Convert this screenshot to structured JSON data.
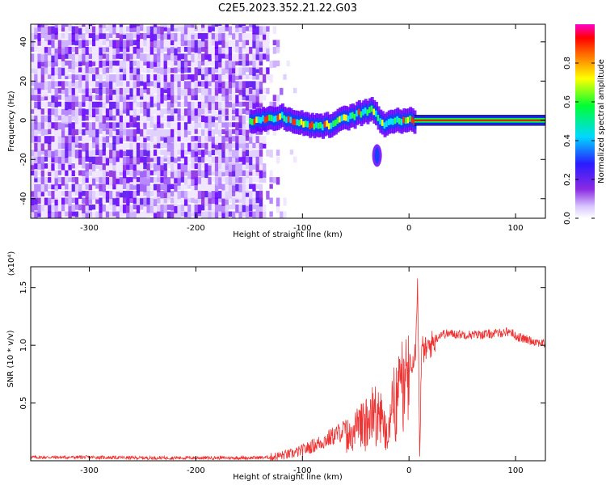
{
  "title": "C2E5.2023.352.21.22.G03",
  "colors": {
    "snr_line": "#ee3333",
    "axis": "#000000"
  },
  "chart_data": [
    {
      "type": "heatmap",
      "xlabel": "Height of straight line (km)",
      "ylabel": "Frequency (Hz)",
      "xlim": [
        -355,
        128
      ],
      "ylim": [
        -50,
        49
      ],
      "xticks": [
        -300,
        -200,
        -100,
        0,
        100
      ],
      "yticks": [
        -40,
        -20,
        0,
        20,
        40
      ],
      "xtick_labels": [
        "-300",
        "-200",
        "-100",
        "0",
        "100"
      ],
      "ytick_labels": [
        "-40",
        "-20",
        "0",
        "20",
        "40"
      ],
      "colorbar": {
        "label": "Normalized spectral amplitude",
        "range": [
          0,
          1
        ],
        "ticks": [
          0.0,
          0.2,
          0.4,
          0.6,
          0.8
        ],
        "tick_labels": [
          "0.0",
          "0.2",
          "0.4",
          "0.6",
          "0.8"
        ]
      },
      "features": {
        "noise_region_x": [
          -355,
          -140
        ],
        "noise_edge_x": -105,
        "ridge": [
          {
            "x": -140,
            "y": 0
          },
          {
            "x": -120,
            "y": 2
          },
          {
            "x": -100,
            "y": -2
          },
          {
            "x": -80,
            "y": -3
          },
          {
            "x": -60,
            "y": 1
          },
          {
            "x": -45,
            "y": 4
          },
          {
            "x": -35,
            "y": 5
          },
          {
            "x": -25,
            "y": -2
          },
          {
            "x": -15,
            "y": 0
          },
          {
            "x": 5,
            "y": 0
          },
          {
            "x": 128,
            "y": 0
          }
        ],
        "tone_x_start": 5,
        "blob": {
          "x": -30,
          "y": -18
        }
      }
    },
    {
      "type": "line",
      "xlabel": "Height of straight line (km)",
      "ylabel": "SNR (10 * v/v)",
      "scale_label": "(x10⁴)",
      "xlim": [
        -355,
        128
      ],
      "ylim": [
        0,
        1.68
      ],
      "xticks": [
        -300,
        -200,
        -100,
        0,
        100
      ],
      "yticks": [
        0.5,
        1.0,
        1.5
      ],
      "xtick_labels": [
        "-300",
        "-200",
        "-100",
        "0",
        "100"
      ],
      "ytick_labels": [
        "0.5",
        "1.0",
        "1.5"
      ],
      "series": [
        {
          "x": [
            -355,
            -300,
            -250,
            -200,
            -150,
            -130,
            -110,
            -100,
            -90,
            -80,
            -70,
            -60,
            -50,
            -40,
            -35,
            -30,
            -25,
            -20,
            -18,
            -15,
            -12,
            -10,
            -8,
            -5,
            0,
            3,
            6,
            8,
            10,
            12,
            15,
            20,
            25,
            30,
            40,
            60,
            80,
            95,
            100,
            110,
            120,
            128
          ],
          "y": [
            0.03,
            0.03,
            0.025,
            0.025,
            0.025,
            0.03,
            0.06,
            0.09,
            0.13,
            0.17,
            0.22,
            0.27,
            0.33,
            0.42,
            0.5,
            0.52,
            0.42,
            0.22,
            0.35,
            0.6,
            0.75,
            0.78,
            0.8,
            0.82,
            0.86,
            0.88,
            0.95,
            1.6,
            0.1,
            0.98,
            0.95,
            1.0,
            1.05,
            1.1,
            1.1,
            1.09,
            1.1,
            1.12,
            1.08,
            1.05,
            1.03,
            1.01
          ]
        }
      ]
    }
  ]
}
